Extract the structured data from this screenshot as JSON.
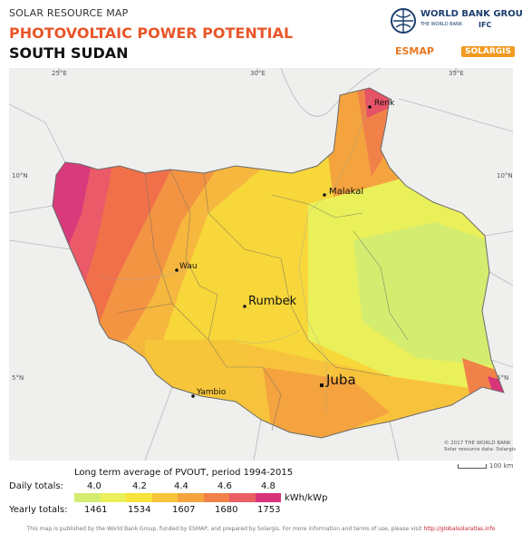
{
  "header": {
    "kicker": "SOLAR RESOURCE MAP",
    "title": "PHOTOVOLTAIC POWER POTENTIAL",
    "country": "SOUTH SUDAN"
  },
  "logos": {
    "world_bank": "WORLD BANK GROUP",
    "world_bank_sub": "THE WORLD BANK",
    "ifc": "IFC",
    "esmap": "ESMAP",
    "solargis": "SOLARGIS"
  },
  "map": {
    "coords": {
      "lon_25": "25°E",
      "lon_30": "30°E",
      "lon_35": "35°E",
      "lat_10_left": "10°N",
      "lat_10_right": "10°N",
      "lat_5_left": "5°N",
      "lat_5_right": "5°N"
    },
    "cities": [
      {
        "name": "Renk",
        "capital": false
      },
      {
        "name": "Malakal",
        "capital": false
      },
      {
        "name": "Wau",
        "capital": false
      },
      {
        "name": "Rumbek",
        "capital": false
      },
      {
        "name": "Yambio",
        "capital": false
      },
      {
        "name": "Juba",
        "capital": true
      }
    ],
    "copyright_line1": "© 2017 THE WORLD BANK",
    "copyright_line2": "Solar resource data: Solargis",
    "scale_label": "100 km"
  },
  "legend": {
    "title": "Long term average of PVOUT, period 1994-2015",
    "daily_label": "Daily totals:",
    "yearly_label": "Yearly totals:",
    "daily_ticks": [
      "4.0",
      "4.2",
      "4.4",
      "4.6",
      "4.8"
    ],
    "yearly_ticks": [
      "1461",
      "1534",
      "1607",
      "1680",
      "1753"
    ],
    "unit": "kWh/kWp",
    "colors": [
      "#d4ec70",
      "#eaf05a",
      "#f8e23c",
      "#f6c53a",
      "#f4a33e",
      "#f08148",
      "#ea5e64",
      "#d8347c"
    ]
  },
  "footer": {
    "text": "This map is published by the World Bank Group, funded by ESMAP, and prepared by Solargis. For more information and terms of use, please visit",
    "url": "http://globalsolaratlas.info"
  }
}
